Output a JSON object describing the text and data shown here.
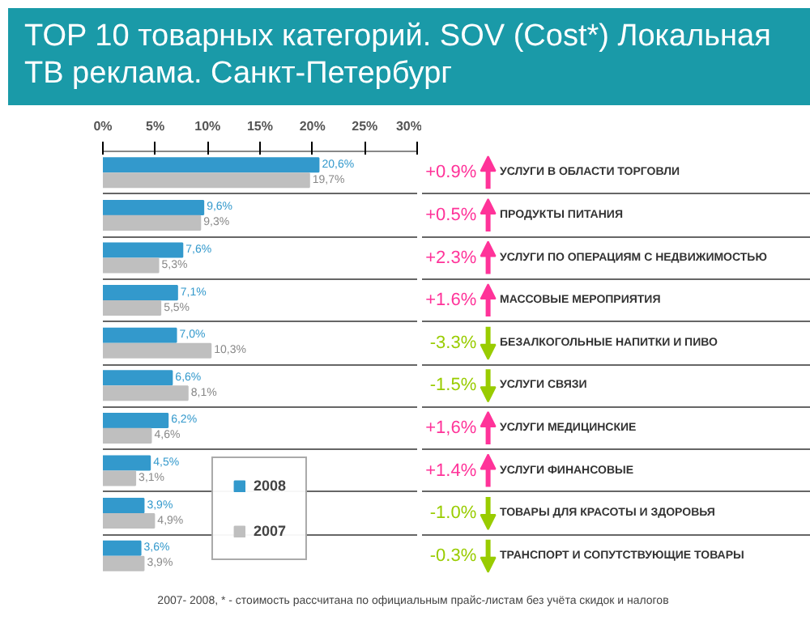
{
  "chart_data": {
    "type": "bar",
    "orientation": "horizontal",
    "title": "TOP 10 товарных категорий. SOV (Cost*) Локальная\nТВ реклама. Санкт-Петербург",
    "categories": [
      "УСЛУГИ В ОБЛАСТИ ТОРГОВЛИ",
      "ПРОДУКТЫ ПИТАНИЯ",
      "УСЛУГИ ПО ОПЕРАЦИЯМ С НЕДВИЖИМОСТЬЮ",
      "МАССОВЫЕ МЕРОПРИЯТИЯ",
      "БЕЗАЛКОГОЛЬНЫЕ НАПИТКИ И ПИВО",
      "УСЛУГИ СВЯЗИ",
      "УСЛУГИ МЕДИЦИНСКИЕ",
      "УСЛУГИ ФИНАНСОВЫЕ",
      "ТОВАРЫ ДЛЯ КРАСОТЫ И ЗДОРОВЬЯ",
      "ТРАНСПОРТ И СОПУТСТВУЮЩИЕ ТОВАРЫ"
    ],
    "series": [
      {
        "name": "2008",
        "color": "#3399cc",
        "values": [
          20.6,
          9.6,
          7.6,
          7.1,
          7.0,
          6.6,
          6.2,
          4.5,
          3.9,
          3.6
        ],
        "value_labels": [
          "20,6%",
          "9,6%",
          "7,6%",
          "7,1%",
          "7,0%",
          "6,6%",
          "6,2%",
          "4,5%",
          "3,9%",
          "3,6%"
        ]
      },
      {
        "name": "2007",
        "color": "#bfbfbf",
        "values": [
          19.7,
          9.3,
          5.3,
          5.5,
          10.3,
          8.1,
          4.6,
          3.1,
          4.9,
          3.9
        ],
        "value_labels": [
          "19,7%",
          "9,3%",
          "5,3%",
          "5,5%",
          "10,3%",
          "8,1%",
          "4,6%",
          "3,1%",
          "4,9%",
          "3,9%"
        ]
      }
    ],
    "xlim": [
      0,
      30
    ],
    "xticks": [
      {
        "value": 0,
        "label": "0%"
      },
      {
        "value": 5,
        "label": "5%"
      },
      {
        "value": 10,
        "label": "10%"
      },
      {
        "value": 15,
        "label": "15%"
      },
      {
        "value": 20,
        "label": "20%"
      },
      {
        "value": 25,
        "label": "25%"
      },
      {
        "value": 30,
        "label": "30%"
      }
    ],
    "grid": "y",
    "legend": "bottom",
    "annotations": [
      "+0.9%",
      "+0.5%",
      "+2.3%",
      "+1.6%",
      "-3.3%",
      "-1.5%",
      "+1,6%",
      "+1.4%",
      "-1.0%",
      "-0.3%",
      "2007- 2008, * - стоимость рассчитана по официальным прайс-листам без учёта скидок и налогов"
    ]
  }
}
